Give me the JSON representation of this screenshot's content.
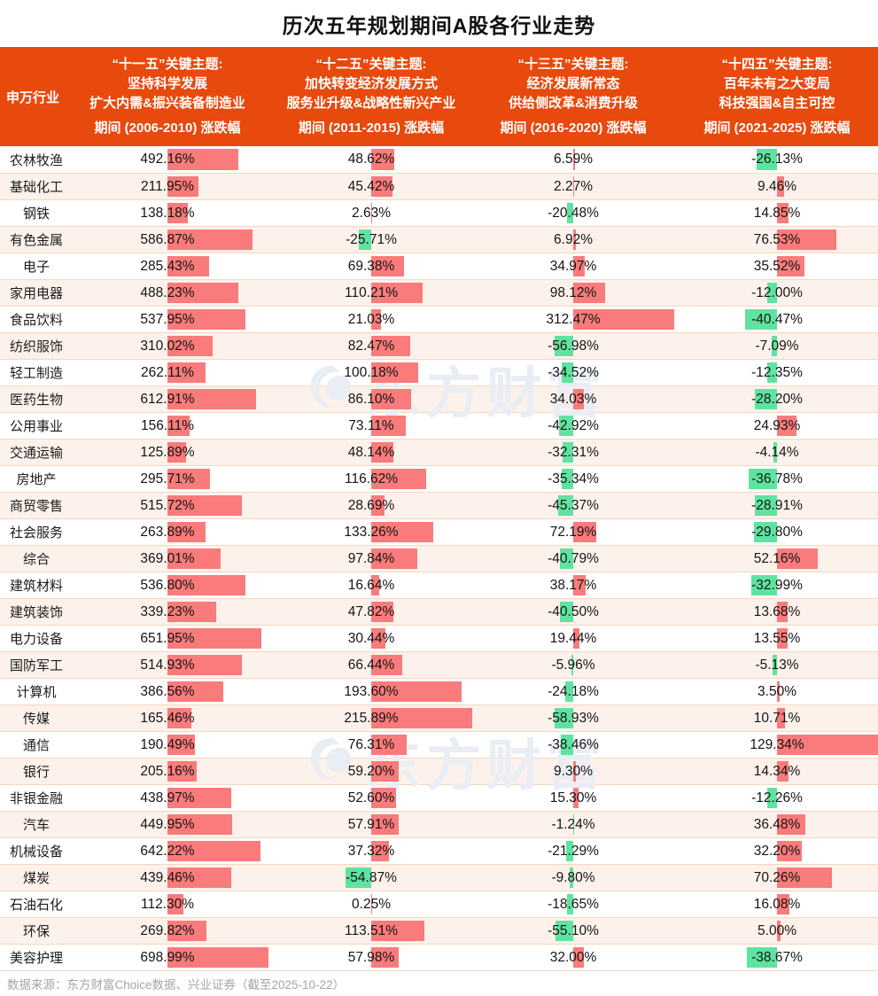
{
  "title": "历次五年规划期间A股各行业走势",
  "header": {
    "industry_label": "申万行业",
    "columns": [
      {
        "theme_lines": [
          "“十一五”关键主题:",
          "坚持科学发展",
          "扩大内需&振兴装备制造业"
        ],
        "period_label": "期间 (2006-2010) 涨跌幅"
      },
      {
        "theme_lines": [
          "“十二五”关键主题:",
          "加快转变经济发展方式",
          "服务业升级&战略性新兴产业"
        ],
        "period_label": "期间 (2011-2015) 涨跌幅"
      },
      {
        "theme_lines": [
          "“十三五”关键主题:",
          "经济发展新常态",
          "供给侧改革&消费升级"
        ],
        "period_label": "期间 (2016-2020) 涨跌幅"
      },
      {
        "theme_lines": [
          "“十四五”关键主题:",
          "百年未有之大变局",
          "科技强国&自主可控"
        ],
        "period_label": "期间 (2021-2025) 涨跌幅"
      }
    ]
  },
  "chart_data": {
    "type": "bar",
    "title": "历次五年规划期间A股各行业走势",
    "unit": "%",
    "orientation": "horizontal",
    "positive_color": "#F97B7B",
    "negative_color": "#5FE3A0",
    "categories": [
      "农林牧渔",
      "基础化工",
      "钢铁",
      "有色金属",
      "电子",
      "家用电器",
      "食品饮料",
      "纺织服饰",
      "轻工制造",
      "医药生物",
      "公用事业",
      "交通运输",
      "房地产",
      "商贸零售",
      "社会服务",
      "综合",
      "建筑材料",
      "建筑装饰",
      "电力设备",
      "国防军工",
      "计算机",
      "传媒",
      "通信",
      "银行",
      "非银金融",
      "汽车",
      "机械设备",
      "煤炭",
      "石油石化",
      "环保",
      "美容护理"
    ],
    "series": [
      {
        "name": "期间 (2006-2010) 涨跌幅",
        "values": [
          492.16,
          211.95,
          138.18,
          586.87,
          285.43,
          488.23,
          537.95,
          310.02,
          262.11,
          612.91,
          156.11,
          125.89,
          295.71,
          515.72,
          263.89,
          369.01,
          536.8,
          339.23,
          651.95,
          514.93,
          386.56,
          165.46,
          190.49,
          205.16,
          438.97,
          449.95,
          642.22,
          439.46,
          112.3,
          269.82,
          698.99
        ]
      },
      {
        "name": "期间 (2011-2015) 涨跌幅",
        "values": [
          48.62,
          45.42,
          2.63,
          -25.71,
          69.38,
          110.21,
          21.03,
          82.47,
          100.18,
          86.1,
          73.11,
          48.14,
          116.62,
          28.69,
          133.26,
          97.84,
          16.64,
          47.82,
          30.44,
          66.44,
          193.6,
          215.89,
          76.31,
          59.2,
          52.6,
          57.91,
          37.32,
          -54.87,
          0.25,
          113.51,
          57.98
        ]
      },
      {
        "name": "期间 (2016-2020) 涨跌幅",
        "values": [
          6.59,
          2.27,
          -20.48,
          6.92,
          34.97,
          98.12,
          312.47,
          -56.98,
          -34.52,
          34.03,
          -42.92,
          -32.31,
          -35.34,
          -45.37,
          72.19,
          -40.79,
          38.17,
          -40.5,
          19.44,
          -5.96,
          -24.18,
          -58.93,
          -38.46,
          9.3,
          15.3,
          -1.24,
          -21.29,
          -9.8,
          -18.65,
          -55.1,
          32.0
        ]
      },
      {
        "name": "期间 (2021-2025) 涨跌幅",
        "values": [
          -26.13,
          9.46,
          14.85,
          76.53,
          35.52,
          -12.0,
          -40.47,
          -7.09,
          -12.35,
          -28.2,
          24.93,
          -4.14,
          -36.78,
          -28.91,
          -29.8,
          52.16,
          -32.99,
          13.68,
          13.55,
          -5.13,
          3.5,
          10.71,
          129.34,
          14.34,
          -12.26,
          36.48,
          32.2,
          70.26,
          16.08,
          5.0,
          -38.67
        ]
      }
    ]
  },
  "watermark": {
    "text": "东方财富"
  },
  "footer": {
    "source": "数据来源：东方财富Choice数据、兴业证券（截至2025-10-22）"
  },
  "colors": {
    "header_bg": "#E8490D",
    "bar_positive": "#F97B7B",
    "bar_negative": "#5FE3A0",
    "row_alt_bg": "#FDF1EB",
    "row_border": "#F6D7BE",
    "footer_text": "#ABA49F",
    "watermark": "#E9EDF4"
  }
}
